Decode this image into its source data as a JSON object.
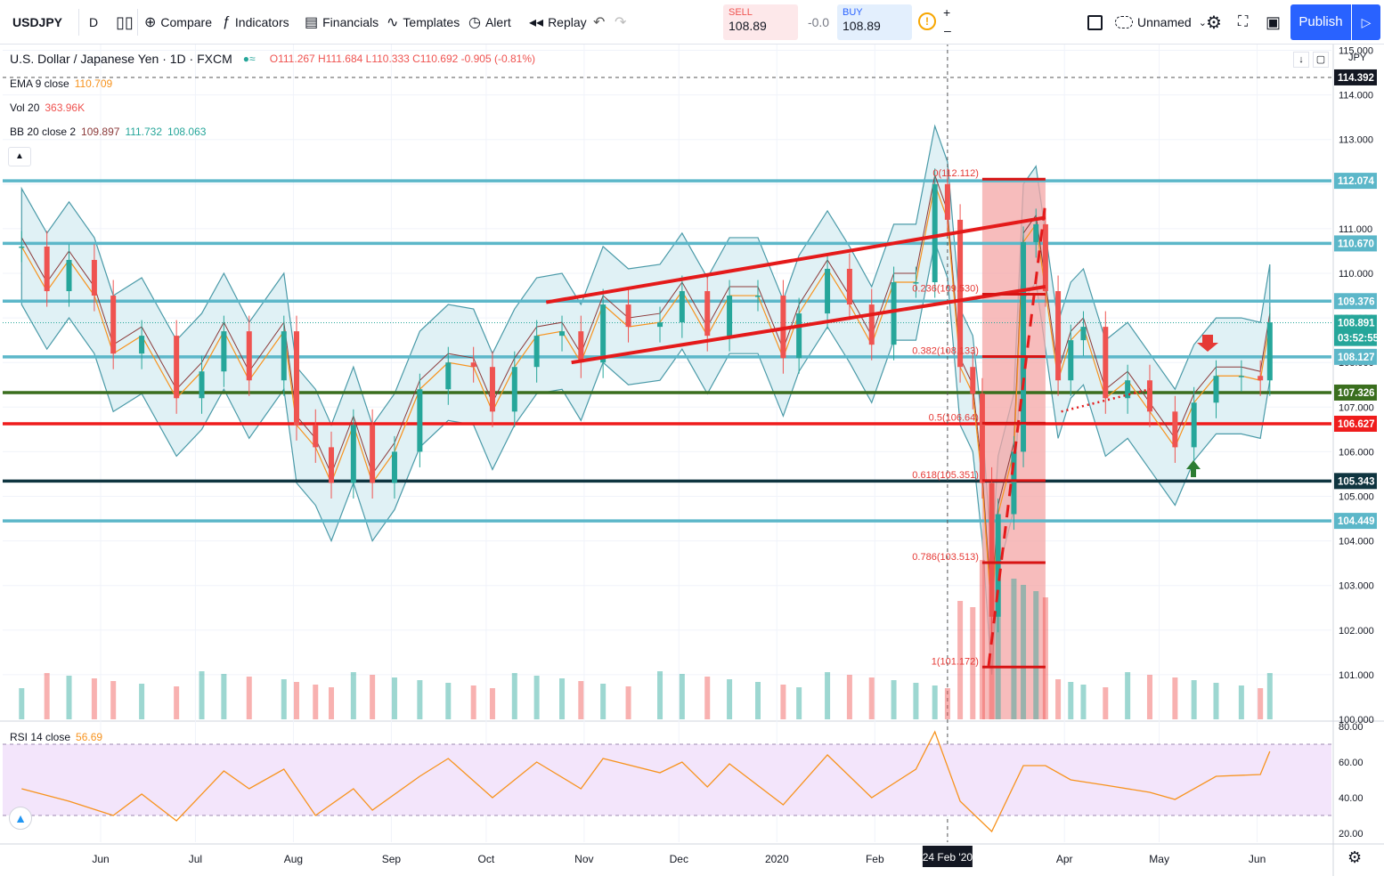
{
  "toolbar": {
    "symbol": "USDJPY",
    "interval": "D",
    "compare": "Compare",
    "indicators": "Indicators",
    "financials": "Financials",
    "templates": "Templates",
    "alert": "Alert",
    "replay": "Replay",
    "sell_label": "SELL",
    "sell_price": "108.89",
    "spread": "-0.0",
    "buy_label": "BUY",
    "buy_price": "108.89",
    "layout_name": "Unnamed",
    "publish": "Publish"
  },
  "legend": {
    "title": "U.S. Dollar / Japanese Yen · 1D · FXCM",
    "ohlc": "O111.267 H111.684 L110.333 C110.692 -0.905 (-0.81%)",
    "ema_name": "EMA 9 close",
    "ema_value": "110.709",
    "vol_name": "Vol 20",
    "vol_value": "363.96K",
    "bb_name": "BB 20 close 2",
    "bb_basis": "109.897",
    "bb_upper": "111.732",
    "bb_lower": "108.063",
    "rsi_name": "RSI 14 close",
    "rsi_value": "56.69"
  },
  "colors": {
    "up": "#26a69a",
    "down": "#ef5350",
    "level_blue": "#5cb7c9",
    "level_red": "#ef1c1c",
    "level_green": "#3a6e1e",
    "level_dark": "#0f3540",
    "band_fill": "#e0f1f5",
    "rsi_fill": "#f3e5fb",
    "ema": "#f7931e",
    "basis": "#8b3a3a"
  },
  "chart_data": {
    "type": "candlestick",
    "symbol": "USDJPY",
    "currency": "JPY",
    "timeframe": "1D",
    "x_labels": [
      "Jun",
      "Jul",
      "Aug",
      "Sep",
      "Oct",
      "Nov",
      "Dec",
      "2020",
      "Feb",
      "24 Feb '20",
      "Apr",
      "May",
      "Jun"
    ],
    "y_ticks": [
      "115.000",
      "114.000",
      "113.000",
      "112.000",
      "111.000",
      "110.000",
      "109.000",
      "108.000",
      "107.000",
      "106.000",
      "105.000",
      "104.000",
      "103.000",
      "102.000",
      "101.000",
      "100.000"
    ],
    "ylim": [
      100,
      115
    ],
    "horizontal_levels": [
      {
        "price": 112.074,
        "label": "112.074",
        "color": "#5cb7c9"
      },
      {
        "price": 110.67,
        "label": "110.670",
        "color": "#5cb7c9"
      },
      {
        "price": 109.376,
        "label": "109.376",
        "color": "#5cb7c9"
      },
      {
        "price": 108.127,
        "label": "108.127",
        "color": "#5cb7c9"
      },
      {
        "price": 107.326,
        "label": "107.326",
        "color": "#3a6e1e"
      },
      {
        "price": 106.627,
        "label": "106.627",
        "color": "#ef1c1c"
      },
      {
        "price": 105.343,
        "label": "105.343",
        "color": "#0f3540"
      },
      {
        "price": 104.449,
        "label": "104.449",
        "color": "#5cb7c9"
      }
    ],
    "price_tags": [
      {
        "price": 114.392,
        "label": "114.392",
        "color": "#131722"
      },
      {
        "price": 108.891,
        "label": "108.891",
        "color": "#26a69a"
      },
      {
        "price": 108.55,
        "label": "03:52:55",
        "color": "#26a69a"
      }
    ],
    "fibonacci": [
      {
        "level": "0",
        "price": 112.112,
        "label": "0(112.112)"
      },
      {
        "level": "0.236",
        "price": 109.53,
        "label": "0.236(109.530)"
      },
      {
        "level": "0.382",
        "price": 108.133,
        "label": "0.382(108.133)"
      },
      {
        "level": "0.5",
        "price": 106.64,
        "label": "0.5(106.64)"
      },
      {
        "level": "0.618",
        "price": 105.351,
        "label": "0.618(105.351)"
      },
      {
        "level": "0.786",
        "price": 103.513,
        "label": "0.786(103.513)"
      },
      {
        "level": "1",
        "price": 101.172,
        "label": "1(101.172)"
      }
    ],
    "channel": {
      "upper": [
        [
          "2019-10-20",
          109.35
        ],
        [
          "2020-03-26",
          111.25
        ]
      ],
      "lower": [
        [
          "2019-10-28",
          108.0
        ],
        [
          "2020-03-26",
          109.7
        ]
      ]
    },
    "close_series": [
      {
        "date": "2019-05-07",
        "close": 110.6
      },
      {
        "date": "2019-05-15",
        "close": 109.6
      },
      {
        "date": "2019-05-22",
        "close": 110.3
      },
      {
        "date": "2019-05-30",
        "close": 109.5
      },
      {
        "date": "2019-06-05",
        "close": 108.2
      },
      {
        "date": "2019-06-14",
        "close": 108.6
      },
      {
        "date": "2019-06-25",
        "close": 107.2
      },
      {
        "date": "2019-07-03",
        "close": 107.8
      },
      {
        "date": "2019-07-10",
        "close": 108.7
      },
      {
        "date": "2019-07-18",
        "close": 107.6
      },
      {
        "date": "2019-07-29",
        "close": 108.7
      },
      {
        "date": "2019-08-02",
        "close": 106.6
      },
      {
        "date": "2019-08-08",
        "close": 106.1
      },
      {
        "date": "2019-08-13",
        "close": 105.3
      },
      {
        "date": "2019-08-20",
        "close": 106.6
      },
      {
        "date": "2019-08-26",
        "close": 105.3
      },
      {
        "date": "2019-09-02",
        "close": 106.0
      },
      {
        "date": "2019-09-10",
        "close": 107.4
      },
      {
        "date": "2019-09-19",
        "close": 108.0
      },
      {
        "date": "2019-09-27",
        "close": 107.9
      },
      {
        "date": "2019-10-03",
        "close": 106.9
      },
      {
        "date": "2019-10-10",
        "close": 107.9
      },
      {
        "date": "2019-10-17",
        "close": 108.6
      },
      {
        "date": "2019-10-25",
        "close": 108.7
      },
      {
        "date": "2019-10-31",
        "close": 108.0
      },
      {
        "date": "2019-11-07",
        "close": 109.3
      },
      {
        "date": "2019-11-15",
        "close": 108.8
      },
      {
        "date": "2019-11-25",
        "close": 108.9
      },
      {
        "date": "2019-12-02",
        "close": 109.6
      },
      {
        "date": "2019-12-10",
        "close": 108.6
      },
      {
        "date": "2019-12-17",
        "close": 109.5
      },
      {
        "date": "2019-12-26",
        "close": 109.5
      },
      {
        "date": "2020-01-03",
        "close": 108.1
      },
      {
        "date": "2020-01-08",
        "close": 109.1
      },
      {
        "date": "2020-01-17",
        "close": 110.1
      },
      {
        "date": "2020-01-24",
        "close": 109.3
      },
      {
        "date": "2020-01-31",
        "close": 108.4
      },
      {
        "date": "2020-02-07",
        "close": 109.8
      },
      {
        "date": "2020-02-14",
        "close": 109.8
      },
      {
        "date": "2020-02-20",
        "close": 112.0
      },
      {
        "date": "2020-02-24",
        "close": 111.2
      },
      {
        "date": "2020-02-28",
        "close": 107.9
      },
      {
        "date": "2020-03-03",
        "close": 107.3
      },
      {
        "date": "2020-03-06",
        "close": 105.3
      },
      {
        "date": "2020-03-09",
        "close": 102.3
      },
      {
        "date": "2020-03-11",
        "close": 104.6
      },
      {
        "date": "2020-03-16",
        "close": 106.0
      },
      {
        "date": "2020-03-19",
        "close": 110.7
      },
      {
        "date": "2020-03-23",
        "close": 111.1
      },
      {
        "date": "2020-03-26",
        "close": 109.6
      },
      {
        "date": "2020-03-30",
        "close": 107.6
      },
      {
        "date": "2020-04-03",
        "close": 108.5
      },
      {
        "date": "2020-04-07",
        "close": 108.8
      },
      {
        "date": "2020-04-14",
        "close": 107.2
      },
      {
        "date": "2020-04-21",
        "close": 107.6
      },
      {
        "date": "2020-04-28",
        "close": 106.9
      },
      {
        "date": "2020-05-06",
        "close": 106.1
      },
      {
        "date": "2020-05-12",
        "close": 107.1
      },
      {
        "date": "2020-05-19",
        "close": 107.7
      },
      {
        "date": "2020-05-27",
        "close": 107.7
      },
      {
        "date": "2020-06-02",
        "close": 107.6
      },
      {
        "date": "2020-06-05",
        "close": 108.9
      }
    ],
    "rsi": {
      "y_ticks": [
        "80.00",
        "60.00",
        "40.00",
        "20.00"
      ],
      "ylim": [
        15,
        82
      ],
      "band": [
        30,
        70
      ],
      "series": [
        {
          "date": "2019-05-07",
          "rsi": 45
        },
        {
          "date": "2019-05-22",
          "rsi": 38
        },
        {
          "date": "2019-06-05",
          "rsi": 30
        },
        {
          "date": "2019-06-14",
          "rsi": 42
        },
        {
          "date": "2019-06-25",
          "rsi": 27
        },
        {
          "date": "2019-07-10",
          "rsi": 55
        },
        {
          "date": "2019-07-18",
          "rsi": 45
        },
        {
          "date": "2019-07-29",
          "rsi": 56
        },
        {
          "date": "2019-08-08",
          "rsi": 30
        },
        {
          "date": "2019-08-20",
          "rsi": 45
        },
        {
          "date": "2019-08-26",
          "rsi": 33
        },
        {
          "date": "2019-09-10",
          "rsi": 52
        },
        {
          "date": "2019-09-19",
          "rsi": 62
        },
        {
          "date": "2019-10-03",
          "rsi": 40
        },
        {
          "date": "2019-10-17",
          "rsi": 60
        },
        {
          "date": "2019-10-31",
          "rsi": 45
        },
        {
          "date": "2019-11-07",
          "rsi": 62
        },
        {
          "date": "2019-11-25",
          "rsi": 54
        },
        {
          "date": "2019-12-02",
          "rsi": 60
        },
        {
          "date": "2019-12-10",
          "rsi": 46
        },
        {
          "date": "2019-12-17",
          "rsi": 59
        },
        {
          "date": "2020-01-03",
          "rsi": 36
        },
        {
          "date": "2020-01-17",
          "rsi": 64
        },
        {
          "date": "2020-01-31",
          "rsi": 40
        },
        {
          "date": "2020-02-14",
          "rsi": 56
        },
        {
          "date": "2020-02-20",
          "rsi": 77
        },
        {
          "date": "2020-02-28",
          "rsi": 38
        },
        {
          "date": "2020-03-09",
          "rsi": 21
        },
        {
          "date": "2020-03-19",
          "rsi": 58
        },
        {
          "date": "2020-03-26",
          "rsi": 58
        },
        {
          "date": "2020-04-03",
          "rsi": 50
        },
        {
          "date": "2020-04-14",
          "rsi": 47
        },
        {
          "date": "2020-04-28",
          "rsi": 43
        },
        {
          "date": "2020-05-06",
          "rsi": 39
        },
        {
          "date": "2020-05-19",
          "rsi": 52
        },
        {
          "date": "2020-06-02",
          "rsi": 53
        },
        {
          "date": "2020-06-05",
          "rsi": 66
        }
      ]
    }
  }
}
